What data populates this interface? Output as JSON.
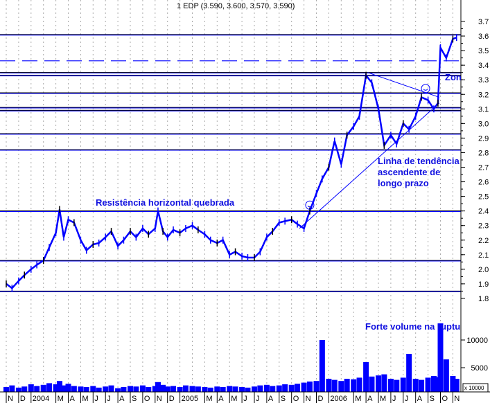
{
  "chart_data": {
    "type": "line",
    "title": "1 EDP (3.590, 3.600, 3.570, 3.590)",
    "y_ticks": [
      "1.8",
      "1.9",
      "2.0",
      "2.1",
      "2.2",
      "2.3",
      "2.4",
      "2.5",
      "2.6",
      "2.7",
      "2.8",
      "2.9",
      "3.0",
      "3.1",
      "3.2",
      "3.3",
      "3.4",
      "3.5",
      "3.6",
      "3.7"
    ],
    "ylim": [
      1.8,
      3.7
    ],
    "volume_ticks": [
      "5000",
      "10000"
    ],
    "volume_unit": "x 10000",
    "x_labels": [
      "N",
      "D",
      "2004",
      "M",
      "A",
      "M",
      "J",
      "J",
      "A",
      "S",
      "O",
      "N",
      "D",
      "2005",
      "M",
      "A",
      "M",
      "J",
      "J",
      "A",
      "S",
      "O",
      "N",
      "D",
      "2006",
      "M",
      "A",
      "M",
      "J",
      "J",
      "A",
      "S",
      "O",
      "N"
    ],
    "x_label_months": [
      "2003-11",
      "2003-12",
      "2004-01",
      "2004-03",
      "2004-04",
      "2004-05",
      "2004-06",
      "2004-07",
      "2004-08",
      "2004-09",
      "2004-10",
      "2004-11",
      "2004-12",
      "2005-01",
      "2005-03",
      "2005-04",
      "2005-05",
      "2005-06",
      "2005-07",
      "2005-08",
      "2005-09",
      "2005-10",
      "2005-11",
      "2005-12",
      "2006-01",
      "2006-03",
      "2006-04",
      "2006-05",
      "2006-06",
      "2006-07",
      "2006-08",
      "2006-09",
      "2006-10",
      "2006-11"
    ],
    "grid": "vertical dotted, monthly",
    "colors": {
      "price": "#0000ff",
      "lines": "#0000ff",
      "annotation": "#1010e0",
      "volume": "#0000ff"
    },
    "series": [
      {
        "x": [
          "2003-11-01",
          "2003-11-15",
          "2003-12-01",
          "2003-12-15",
          "2004-01-01",
          "2004-01-15",
          "2004-02-01",
          "2004-02-15",
          "2004-03-01",
          "2004-03-10",
          "2004-03-20",
          "2004-04-01",
          "2004-04-15",
          "2004-05-01",
          "2004-05-15",
          "2004-06-01",
          "2004-06-15",
          "2004-07-01",
          "2004-07-15",
          "2004-08-01",
          "2004-08-15",
          "2004-09-01",
          "2004-09-15",
          "2004-10-01",
          "2004-10-15",
          "2004-11-01",
          "2004-11-08",
          "2004-11-20",
          "2004-12-01",
          "2004-12-15",
          "2005-01-01",
          "2005-01-15",
          "2005-02-01",
          "2005-02-15",
          "2005-03-01",
          "2005-03-15",
          "2005-04-01",
          "2005-04-15",
          "2005-05-01",
          "2005-05-15",
          "2005-06-01",
          "2005-06-15",
          "2005-07-01",
          "2005-07-15",
          "2005-08-01",
          "2005-08-15",
          "2005-09-01",
          "2005-09-15",
          "2005-10-01",
          "2005-10-15",
          "2005-11-01",
          "2005-11-15",
          "2005-12-01",
          "2005-12-15",
          "2006-01-01",
          "2006-01-15",
          "2006-02-01",
          "2006-02-15",
          "2006-03-01",
          "2006-03-15",
          "2006-04-01",
          "2006-04-15",
          "2006-05-01",
          "2006-05-15",
          "2006-06-01",
          "2006-06-15",
          "2006-07-01",
          "2006-07-15",
          "2006-08-01",
          "2006-08-15",
          "2006-09-01",
          "2006-09-15",
          "2006-09-25",
          "2006-10-01",
          "2006-10-15",
          "2006-11-01",
          "2006-11-10"
        ],
        "price": [
          1.9,
          1.87,
          1.92,
          1.96,
          2.0,
          2.03,
          2.06,
          2.15,
          2.25,
          2.41,
          2.22,
          2.34,
          2.32,
          2.2,
          2.13,
          2.17,
          2.18,
          2.22,
          2.26,
          2.16,
          2.2,
          2.26,
          2.22,
          2.28,
          2.24,
          2.28,
          2.4,
          2.26,
          2.22,
          2.27,
          2.25,
          2.28,
          2.3,
          2.27,
          2.24,
          2.2,
          2.18,
          2.2,
          2.1,
          2.12,
          2.09,
          2.08,
          2.08,
          2.12,
          2.22,
          2.26,
          2.32,
          2.33,
          2.34,
          2.31,
          2.28,
          2.4,
          2.52,
          2.62,
          2.7,
          2.88,
          2.72,
          2.92,
          2.98,
          3.05,
          3.33,
          3.28,
          3.1,
          2.85,
          2.92,
          2.86,
          3.0,
          2.96,
          3.05,
          3.18,
          3.16,
          3.1,
          3.14,
          3.52,
          3.45,
          3.58,
          3.59
        ],
        "volume": [
          1500,
          1800,
          1400,
          1600,
          2000,
          1700,
          1900,
          2200,
          2000,
          2600,
          1800,
          2100,
          1700,
          1600,
          1500,
          1700,
          1400,
          1600,
          1800,
          1300,
          1500,
          1700,
          1600,
          1800,
          1500,
          1700,
          2400,
          1900,
          1600,
          1700,
          1500,
          1800,
          1700,
          1600,
          1500,
          1400,
          1600,
          1500,
          1700,
          1600,
          1500,
          1400,
          1600,
          1800,
          1900,
          1700,
          1800,
          2000,
          1900,
          2100,
          2300,
          2500,
          2600,
          10000,
          3000,
          2800,
          2600,
          3000,
          2900,
          3200,
          6000,
          3400,
          3600,
          3800,
          3000,
          2800,
          3200,
          7500,
          3000,
          2800,
          3200,
          3500,
          3300,
          13000,
          6500,
          3500,
          3000
        ]
      }
    ],
    "horizontal_levels": [
      {
        "value": 3.61,
        "style": "solid"
      },
      {
        "value": 3.43,
        "style": "dashed"
      },
      {
        "value": 3.35,
        "style": "solid"
      },
      {
        "value": 3.33,
        "style": "solid"
      },
      {
        "value": 3.21,
        "style": "solid"
      },
      {
        "value": 3.11,
        "style": "solid"
      },
      {
        "value": 3.09,
        "style": "solid"
      },
      {
        "value": 2.93,
        "style": "solid"
      },
      {
        "value": 2.82,
        "style": "solid"
      },
      {
        "value": 2.4,
        "style": "solid"
      },
      {
        "value": 2.06,
        "style": "solid"
      },
      {
        "value": 1.85,
        "style": "solid"
      }
    ],
    "trendlines": [
      {
        "from": [
          "2005-10-20",
          2.28
        ],
        "to": [
          "2006-09-28",
          3.14
        ]
      },
      {
        "from": [
          "2006-04-05",
          3.35
        ],
        "to": [
          "2006-09-28",
          3.18
        ]
      }
    ],
    "markers": [
      {
        "type": "smiley",
        "at": [
          "2005-11-15",
          2.44
        ]
      },
      {
        "type": "smiley",
        "at": [
          "2006-08-25",
          3.24
        ]
      }
    ],
    "annotations": {
      "resistance": "Resistência horizontal quebrada",
      "trend_line1": "Linha de tendência",
      "trend_line2": "ascendente de",
      "trend_line3": "longo prazo",
      "zone": "Zon",
      "volume": "Forte volume na ruptu"
    }
  }
}
